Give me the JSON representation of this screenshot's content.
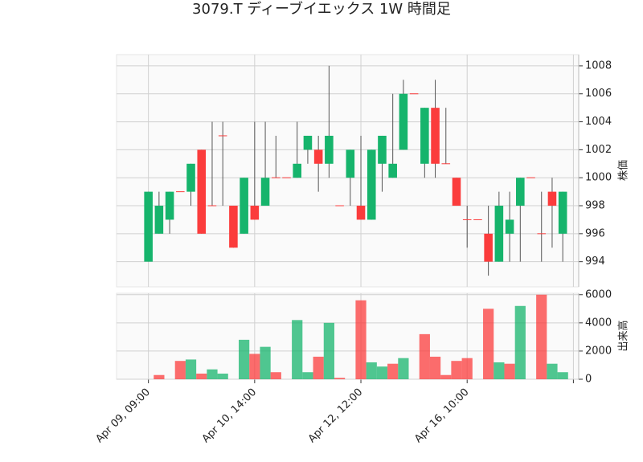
{
  "chart_data": {
    "type": "candlestick",
    "title": "3079.T ディーブイエックス 1W 時間足",
    "ylabel": "株価",
    "volume_label": "出来高",
    "open": [
      994,
      996,
      997,
      999,
      999,
      1002,
      998,
      1003,
      998,
      996,
      998,
      998,
      1000,
      1000,
      1000,
      1002,
      1002,
      1001,
      998,
      1000,
      998,
      997,
      1001,
      1000,
      1002,
      1006,
      1001,
      1005,
      1001,
      1000,
      997,
      997,
      996,
      994,
      996,
      998,
      1000,
      996,
      999,
      996
    ],
    "high": [
      999,
      999,
      999,
      999,
      1001,
      1002,
      1004,
      1004,
      998,
      1000,
      1004,
      1004,
      1003,
      1000,
      1004,
      1003,
      1003,
      1008,
      998,
      1002,
      1003,
      1002,
      1003,
      1006,
      1007,
      1006,
      1005,
      1007,
      1005,
      1000,
      998,
      997,
      998,
      999,
      999,
      1000,
      1000,
      999,
      1000,
      999
    ],
    "low": [
      994,
      996,
      996,
      999,
      998,
      996,
      998,
      998,
      995,
      996,
      997,
      998,
      1000,
      1000,
      1000,
      1001,
      999,
      1000,
      998,
      998,
      997,
      997,
      999,
      1000,
      1002,
      1006,
      1000,
      1000,
      1001,
      998,
      995,
      997,
      993,
      994,
      994,
      994,
      1000,
      994,
      995,
      994
    ],
    "close": [
      999,
      998,
      999,
      999,
      1001,
      996,
      998,
      1003,
      995,
      1000,
      997,
      1000,
      1000,
      1000,
      1001,
      1003,
      1001,
      1003,
      998,
      1002,
      997,
      1002,
      1003,
      1001,
      1006,
      1006,
      1005,
      1001,
      1001,
      998,
      997,
      997,
      994,
      998,
      997,
      1000,
      1000,
      996,
      998,
      999
    ],
    "volume": [
      0,
      300,
      0,
      1300,
      1400,
      400,
      700,
      400,
      0,
      2800,
      1800,
      2300,
      500,
      0,
      4200,
      500,
      1600,
      4000,
      100,
      0,
      5600,
      1200,
      900,
      1100,
      1500,
      0,
      3200,
      1600,
      300,
      1300,
      1500,
      0,
      5000,
      1200,
      1100,
      5200,
      0,
      6000,
      1100,
      500
    ],
    "up_color": "#16b46c",
    "down_color": "#fb3c3c",
    "xlim": [
      -3,
      40.5
    ],
    "xticks": [
      {
        "value": 0,
        "label": "Apr 09, 09:00"
      },
      {
        "value": 10,
        "label": "Apr 10, 14:00"
      },
      {
        "value": 20,
        "label": "Apr 12, 12:00"
      },
      {
        "value": 30,
        "label": "Apr 16, 10:00"
      },
      {
        "value": 40,
        "label": null
      }
    ],
    "ylim": [
      992.2,
      1008.8
    ],
    "yticks": [
      994,
      996,
      998,
      1000,
      1002,
      1004,
      1006,
      1008
    ],
    "volume_ylim": [
      0,
      6100
    ],
    "volume_yticks": [
      0,
      2000,
      4000,
      6000
    ],
    "grid": true
  }
}
